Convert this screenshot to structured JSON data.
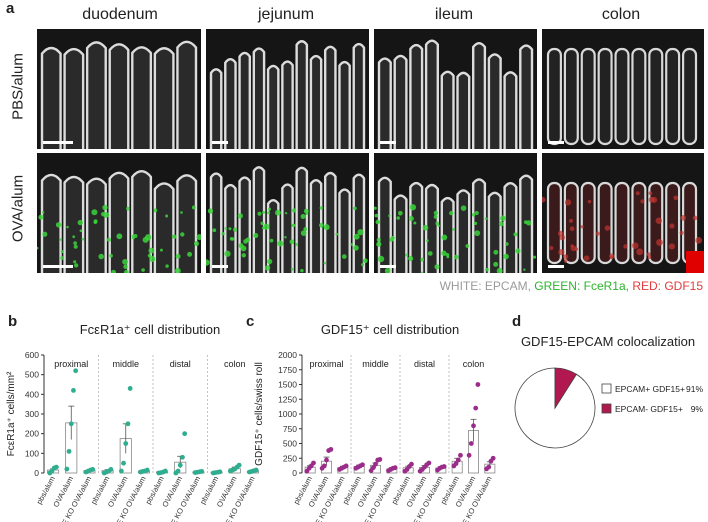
{
  "panel_a": {
    "letter": "a",
    "columns": [
      "duodenum",
      "jejunum",
      "ileum",
      "colon"
    ],
    "rows": [
      "PBS/alum",
      "OVA/alum"
    ],
    "stain_legend": {
      "white": "WHITE: EPCAM,",
      "green": "GREEN: FceR1a,",
      "red": "RED: GDF15",
      "white_color": "#9a9a9a",
      "green_color": "#2db52d",
      "red_color": "#e23b3b"
    }
  },
  "panel_b": {
    "letter": "b"
  },
  "panel_c": {
    "letter": "c"
  },
  "panel_d": {
    "letter": "d"
  },
  "chart_data": [
    {
      "type": "bar",
      "panel": "b",
      "title": "FcεR1a⁺ cell distribution",
      "ylabel": "FcεR1a⁺ cells/mm²",
      "ylim": [
        0,
        600
      ],
      "yticks": [
        0,
        100,
        200,
        300,
        400,
        500,
        600
      ],
      "groups": [
        "proximal",
        "middle",
        "distal",
        "colon"
      ],
      "categories": [
        "pbs/alum",
        "OVA/alum",
        "IgE KO OVA/alum"
      ],
      "color": "#2fae8f",
      "values": [
        [
          15,
          255,
          12
        ],
        [
          12,
          175,
          10
        ],
        [
          6,
          55,
          5
        ],
        [
          4,
          22,
          10
        ]
      ],
      "errors": [
        [
          6,
          85,
          4
        ],
        [
          5,
          75,
          4
        ],
        [
          3,
          30,
          2
        ],
        [
          2,
          8,
          3
        ]
      ],
      "points": [
        [
          [
            0,
            10,
            25,
            30
          ],
          [
            20,
            110,
            250,
            420,
            520
          ],
          [
            5,
            10,
            15,
            18
          ]
        ],
        [
          [
            0,
            5,
            10,
            18
          ],
          [
            10,
            50,
            150,
            250,
            430
          ],
          [
            5,
            8,
            10,
            15
          ]
        ],
        [
          [
            0,
            2,
            5,
            10
          ],
          [
            0,
            10,
            40,
            80,
            200
          ],
          [
            2,
            4,
            6,
            8
          ]
        ],
        [
          [
            0,
            2,
            4,
            6
          ],
          [
            10,
            15,
            20,
            30,
            40
          ],
          [
            5,
            8,
            12,
            15
          ]
        ]
      ]
    },
    {
      "type": "bar",
      "panel": "c",
      "title": "GDF15⁺ cell distribution",
      "ylabel": "GDF15⁺ cells/swiss roll",
      "ylim": [
        0,
        2000
      ],
      "yticks": [
        0,
        250,
        500,
        750,
        1000,
        1250,
        1500,
        1750,
        2000
      ],
      "groups": [
        "proximal",
        "middle",
        "distal",
        "colon"
      ],
      "categories": [
        "pbs/alum",
        "OVA/alum",
        "IgE KO OVA/alum"
      ],
      "color": "#9b2d8a",
      "values": [
        [
          100,
          200,
          90
        ],
        [
          110,
          130,
          70
        ],
        [
          90,
          95,
          85
        ],
        [
          200,
          720,
          150
        ]
      ],
      "errors": [
        [
          30,
          70,
          25
        ],
        [
          25,
          40,
          20
        ],
        [
          25,
          30,
          20
        ],
        [
          50,
          190,
          40
        ]
      ],
      "points": [
        [
          [
            30,
            80,
            120,
            170
          ],
          [
            80,
            120,
            220,
            380,
            400
          ],
          [
            60,
            80,
            100,
            120
          ]
        ],
        [
          [
            80,
            100,
            120,
            140
          ],
          [
            40,
            90,
            150,
            220,
            230
          ],
          [
            40,
            60,
            80,
            90
          ]
        ],
        [
          [
            30,
            60,
            110,
            150
          ],
          [
            30,
            60,
            100,
            140,
            170
          ],
          [
            50,
            80,
            100,
            110
          ]
        ],
        [
          [
            120,
            160,
            220,
            300
          ],
          [
            300,
            500,
            800,
            1100,
            1500
          ],
          [
            70,
            100,
            200,
            250
          ]
        ]
      ]
    },
    {
      "type": "pie",
      "panel": "d",
      "title": "GDF15-EPCAM colocalization",
      "slices": [
        {
          "label": "EPCAM+ GDF15+",
          "value": 91,
          "display": "91%",
          "color": "#ffffff"
        },
        {
          "label": "EPCAM- GDF15+",
          "value": 9,
          "display": "9%",
          "color": "#b0184f"
        }
      ]
    }
  ]
}
